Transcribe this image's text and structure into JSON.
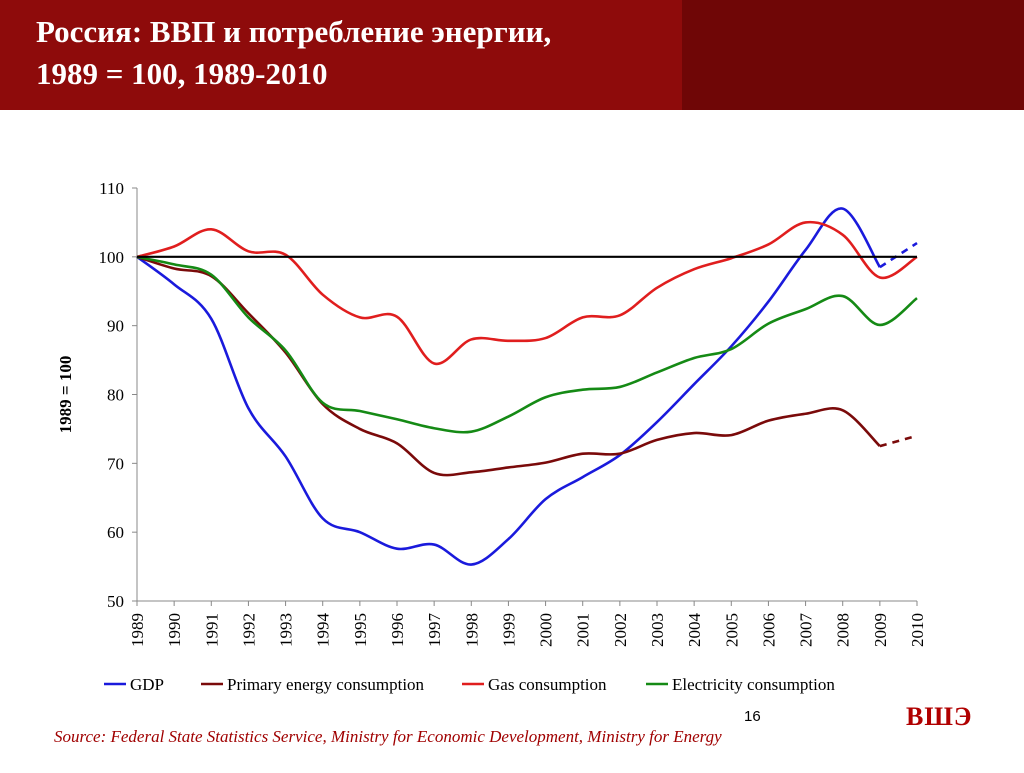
{
  "header": {
    "title_line1": "Россия: ВВП и потребление энергии,",
    "title_line2": "1989 = 100, 1989-2010"
  },
  "footer": {
    "page_number": "16",
    "logo_text": "ВШЭ",
    "source": "Source: Federal State Statistics Service, Ministry for Economic Development, Ministry for Energy"
  },
  "colors": {
    "header_bg": "#8e0b0b",
    "gdp": "#1a1adc",
    "primary_energy": "#7a0a0a",
    "gas": "#e01e1e",
    "electricity": "#158a15"
  },
  "chart_data": {
    "type": "line",
    "title": "",
    "xlabel": "",
    "ylabel": "1989 = 100",
    "ylim": [
      50,
      110
    ],
    "yticks": [
      50,
      60,
      70,
      80,
      90,
      100,
      110
    ],
    "reference_line": 100,
    "grid": false,
    "legend_position": "bottom",
    "x": [
      "1989",
      "1990",
      "1991",
      "1992",
      "1993",
      "1994",
      "1995",
      "1996",
      "1997",
      "1998",
      "1999",
      "2000",
      "2001",
      "2002",
      "2003",
      "2004",
      "2005",
      "2006",
      "2007",
      "2008",
      "2009",
      "2010"
    ],
    "series": [
      {
        "name": "GDP",
        "color": "#1a1adc",
        "values": [
          100,
          96,
          91,
          78,
          71,
          62,
          60,
          57.6,
          58.2,
          55.3,
          59,
          64.8,
          68,
          71.2,
          76,
          81.5,
          87,
          93.5,
          101,
          107,
          98.5,
          null
        ],
        "forecast": [
          98.5,
          102
        ]
      },
      {
        "name": "Primary energy consumption",
        "color": "#7a0a0a",
        "values": [
          100,
          98.3,
          97.2,
          91.8,
          86.1,
          78.6,
          75,
          72.9,
          68.6,
          68.7,
          69.4,
          70.1,
          71.4,
          71.4,
          73.4,
          74.4,
          74.1,
          76.2,
          77.2,
          77.7,
          72.5,
          null
        ],
        "forecast": [
          72.5,
          74
        ]
      },
      {
        "name": "Gas consumption",
        "color": "#e01e1e",
        "values": [
          100,
          101.5,
          104,
          100.8,
          100.3,
          94.5,
          91.2,
          91.3,
          84.5,
          88,
          87.8,
          88.2,
          91.2,
          91.5,
          95.5,
          98.2,
          99.8,
          101.8,
          105,
          103.2,
          97,
          100
        ]
      },
      {
        "name": "Electricity consumption",
        "color": "#158a15",
        "values": [
          100,
          98.9,
          97.4,
          91.2,
          86.4,
          78.8,
          77.6,
          76.4,
          75.1,
          74.6,
          76.8,
          79.6,
          80.7,
          81.1,
          83.2,
          85.3,
          86.6,
          90.3,
          92.4,
          94.3,
          90.1,
          94
        ]
      }
    ]
  }
}
